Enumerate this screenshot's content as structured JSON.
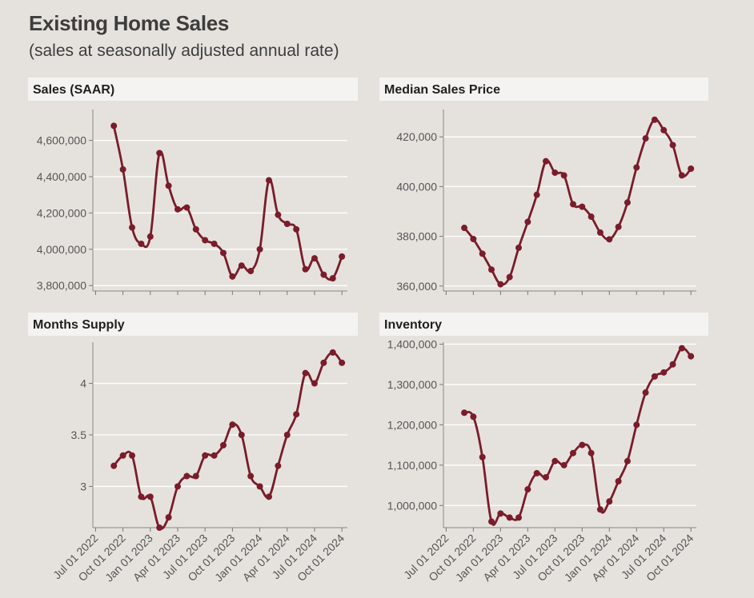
{
  "title": "Existing Home Sales",
  "subtitle": "(sales at seasonally adjusted annual rate)",
  "colors": {
    "line": "#7a1c2b",
    "background": "#e5e2dd",
    "strip": "#f4f3f1",
    "grid": "#ffffff",
    "text": "#555555"
  },
  "chart_data": [
    {
      "type": "line",
      "title": "Sales (SAAR)",
      "x_tick_labels": [
        "Jul 01 2022",
        "Oct 01 2022",
        "Jan 01 2023",
        "Apr 01 2023",
        "Jul 01 2023",
        "Oct 01 2023",
        "Jan 01 2024",
        "Apr 01 2024",
        "Jul 01 2024",
        "Oct 01 2024"
      ],
      "x": [
        "2022-09",
        "2022-10",
        "2022-11",
        "2022-12",
        "2023-01",
        "2023-02",
        "2023-03",
        "2023-04",
        "2023-05",
        "2023-06",
        "2023-07",
        "2023-08",
        "2023-09",
        "2023-10",
        "2023-11",
        "2023-12",
        "2024-01",
        "2024-02",
        "2024-03",
        "2024-04",
        "2024-05",
        "2024-06",
        "2024-07",
        "2024-08",
        "2024-09",
        "2024-10"
      ],
      "values": [
        4680000,
        4440000,
        4120000,
        4030000,
        4070000,
        4530000,
        4350000,
        4220000,
        4230000,
        4110000,
        4050000,
        4030000,
        3980000,
        3850000,
        3910000,
        3880000,
        4000000,
        4380000,
        4190000,
        4140000,
        4110000,
        3890000,
        3950000,
        3860000,
        3840000,
        3960000
      ],
      "ylim": [
        3770000,
        4770000
      ],
      "yticks": [
        3800000,
        4000000,
        4200000,
        4400000,
        4600000
      ],
      "ytick_labels": [
        "3,800,000",
        "4,000,000",
        "4,200,000",
        "4,400,000",
        "4,600,000"
      ]
    },
    {
      "type": "line",
      "title": "Median Sales Price",
      "x_tick_labels": [
        "Jul 01 2022",
        "Oct 01 2022",
        "Jan 01 2023",
        "Apr 01 2023",
        "Jul 01 2023",
        "Oct 01 2023",
        "Jan 01 2024",
        "Apr 01 2024",
        "Jul 01 2024",
        "Oct 01 2024"
      ],
      "x": [
        "2022-09",
        "2022-10",
        "2022-11",
        "2022-12",
        "2023-01",
        "2023-02",
        "2023-03",
        "2023-04",
        "2023-05",
        "2023-06",
        "2023-07",
        "2023-08",
        "2023-09",
        "2023-10",
        "2023-11",
        "2023-12",
        "2024-01",
        "2024-02",
        "2024-03",
        "2024-04",
        "2024-05",
        "2024-06",
        "2024-07",
        "2024-08",
        "2024-09",
        "2024-10"
      ],
      "values": [
        383400,
        378900,
        373000,
        366600,
        360700,
        363600,
        375400,
        385800,
        396700,
        410200,
        405600,
        404500,
        392900,
        391900,
        387900,
        381500,
        378800,
        383800,
        393600,
        407700,
        419400,
        426900,
        422700,
        416700,
        404500,
        407200
      ],
      "ylim": [
        358000,
        431000
      ],
      "yticks": [
        360000,
        380000,
        400000,
        420000
      ],
      "ytick_labels": [
        "360,000",
        "380,000",
        "400,000",
        "420,000"
      ]
    },
    {
      "type": "line",
      "title": "Months Supply",
      "x_tick_labels": [
        "Jul 01 2022",
        "Oct 01 2022",
        "Jan 01 2023",
        "Apr 01 2023",
        "Jul 01 2023",
        "Oct 01 2023",
        "Jan 01 2024",
        "Apr 01 2024",
        "Jul 01 2024",
        "Oct 01 2024"
      ],
      "x": [
        "2022-09",
        "2022-10",
        "2022-11",
        "2022-12",
        "2023-01",
        "2023-02",
        "2023-03",
        "2023-04",
        "2023-05",
        "2023-06",
        "2023-07",
        "2023-08",
        "2023-09",
        "2023-10",
        "2023-11",
        "2023-12",
        "2024-01",
        "2024-02",
        "2024-03",
        "2024-04",
        "2024-05",
        "2024-06",
        "2024-07",
        "2024-08",
        "2024-09",
        "2024-10"
      ],
      "values": [
        3.2,
        3.3,
        3.3,
        2.9,
        2.9,
        2.6,
        2.7,
        3.0,
        3.1,
        3.1,
        3.3,
        3.3,
        3.4,
        3.6,
        3.5,
        3.1,
        3.0,
        2.9,
        3.2,
        3.5,
        3.7,
        4.1,
        4.0,
        4.2,
        4.3,
        4.2
      ],
      "ylim": [
        2.6,
        4.4
      ],
      "yticks": [
        3,
        3.5,
        4
      ],
      "ytick_labels": [
        "3",
        "3.5",
        "4"
      ]
    },
    {
      "type": "line",
      "title": "Inventory",
      "x_tick_labels": [
        "Jul 01 2022",
        "Oct 01 2022",
        "Jan 01 2023",
        "Apr 01 2023",
        "Jul 01 2023",
        "Oct 01 2023",
        "Jan 01 2024",
        "Apr 01 2024",
        "Jul 01 2024",
        "Oct 01 2024"
      ],
      "x": [
        "2022-09",
        "2022-10",
        "2022-11",
        "2022-12",
        "2023-01",
        "2023-02",
        "2023-03",
        "2023-04",
        "2023-05",
        "2023-06",
        "2023-07",
        "2023-08",
        "2023-09",
        "2023-10",
        "2023-11",
        "2023-12",
        "2024-01",
        "2024-02",
        "2024-03",
        "2024-04",
        "2024-05",
        "2024-06",
        "2024-07",
        "2024-08",
        "2024-09",
        "2024-10"
      ],
      "values": [
        1230000,
        1220000,
        1120000,
        960000,
        980000,
        970000,
        970000,
        1040000,
        1080000,
        1070000,
        1110000,
        1100000,
        1130000,
        1150000,
        1130000,
        990000,
        1010000,
        1060000,
        1110000,
        1200000,
        1280000,
        1320000,
        1330000,
        1350000,
        1390000,
        1370000
      ],
      "ylim": [
        945000,
        1405000
      ],
      "yticks": [
        1000000,
        1100000,
        1200000,
        1300000,
        1400000
      ],
      "ytick_labels": [
        "1,000,000",
        "1,100,000",
        "1,200,000",
        "1,300,000",
        "1,400,000"
      ]
    }
  ]
}
